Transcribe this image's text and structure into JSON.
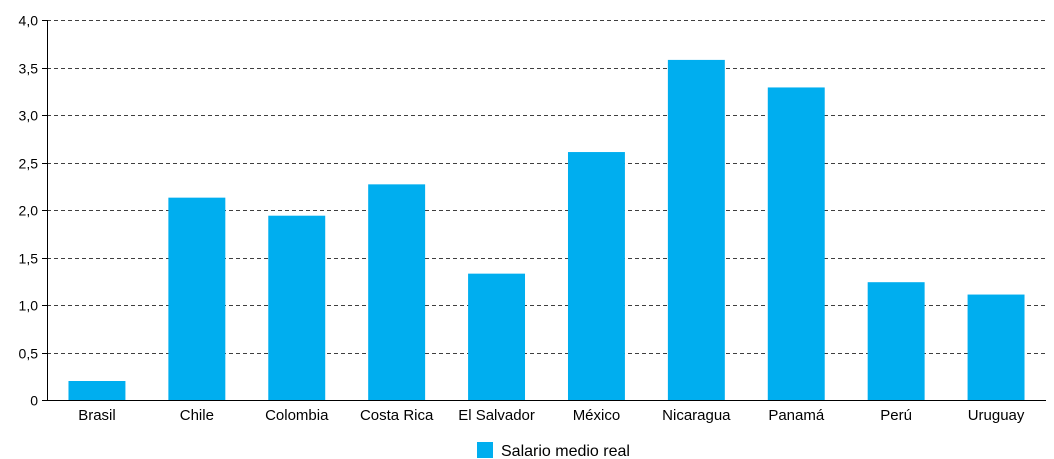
{
  "chart_data": {
    "type": "bar",
    "categories": [
      "Brasil",
      "Chile",
      "Colombia",
      "Costa Rica",
      "El Salvador",
      "México",
      "Nicaragua",
      "Panamá",
      "Perú",
      "Uruguay"
    ],
    "series": [
      {
        "name": "Salario medio real",
        "values": [
          0.2,
          2.13,
          1.94,
          2.27,
          1.33,
          2.61,
          3.58,
          3.29,
          1.24,
          1.11
        ],
        "color": "#00aeef"
      }
    ],
    "title": "",
    "xlabel": "",
    "ylabel": "",
    "ylim": [
      0,
      4.0
    ],
    "yticks": [
      0,
      0.5,
      1.0,
      1.5,
      2.0,
      2.5,
      3.0,
      3.5,
      4.0
    ],
    "ytick_labels": [
      "0",
      "0,5",
      "1,0",
      "1,5",
      "2,0",
      "2,5",
      "3,0",
      "3,5",
      "4,0"
    ],
    "grid": "horizontal-dashed",
    "legend_position": "bottom-center"
  }
}
